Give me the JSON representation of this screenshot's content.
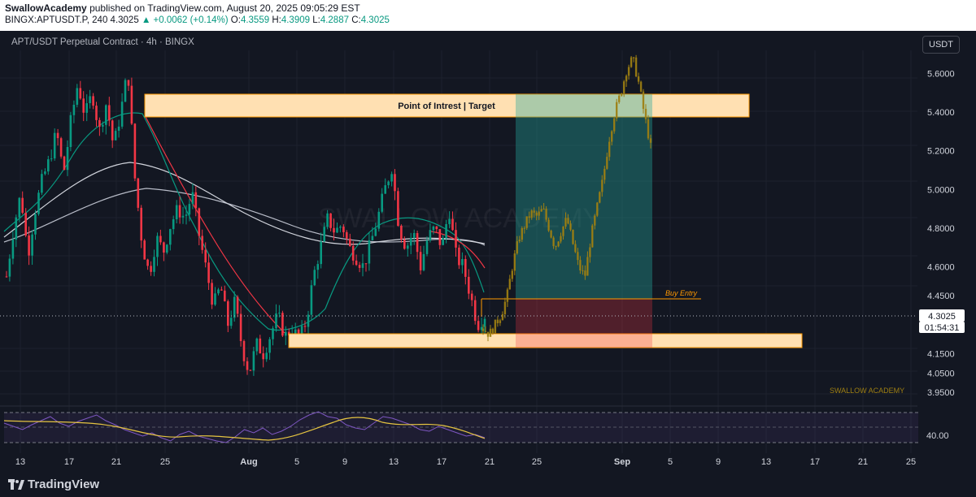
{
  "header": {
    "author": "SwallowAcademy",
    "published_text": "published on TradingView.com, August 20, 2025 09:05:29 EST",
    "symbol_line": "BINGX:APTUSDT.P, 240",
    "last": "4.3025",
    "change": "▲ +0.0062 (+0.14%)",
    "open_label": "O:",
    "open": "4.3559",
    "high_label": "H:",
    "high": "4.3909",
    "low_label": "L:",
    "low": "4.2887",
    "close_label": "C:",
    "close": "4.3025"
  },
  "chart": {
    "title": "APT/USDT Perpetual Contract · 4h · BINGX",
    "currency_button": "USDT",
    "watermark": "SWALLOW ACADEMY",
    "signature": "SWALLOW ACADEMY",
    "last_price_label": "4.3025",
    "countdown_label": "01:54:31",
    "rsi_level_label": "40.00",
    "footer_brand": "TradingView",
    "colors": {
      "background": "#131722",
      "up": "#089981",
      "down": "#f23645",
      "zone_fill": "#ffe0b2",
      "zone_border": "#ff9800",
      "profit": "#26a69a",
      "loss": "#f23645",
      "projection": "#9e7f12",
      "rsi": "#7e57c2",
      "rsi_ma": "#e5c441"
    }
  },
  "chart_data": {
    "type": "candlestick",
    "price_axis": {
      "ticks": [
        3.95,
        4.05,
        4.15,
        4.45,
        4.6,
        4.8,
        5.0,
        5.2,
        5.4,
        5.6
      ],
      "tick_labels": [
        "3.9500",
        "4.0500",
        "4.1500",
        "4.4500",
        "4.6000",
        "4.8000",
        "5.0000",
        "5.2000",
        "5.4000",
        "5.6000"
      ],
      "range": [
        3.9,
        5.72
      ]
    },
    "time_axis": {
      "labels": [
        "13",
        "17",
        "21",
        "25",
        "Aug",
        "5",
        "9",
        "13",
        "17",
        "21",
        "25",
        "Sep",
        "5",
        "9",
        "13",
        "17",
        "21",
        "25"
      ]
    },
    "last_price": 4.3025,
    "annotations": {
      "target_label": "Point of Intrest | Target",
      "entry_label": "Buy Entry",
      "target_zone": [
        5.35,
        5.48
      ],
      "support_zone": [
        4.16,
        4.21
      ],
      "entry_price": 4.39,
      "stop_price": 4.16,
      "target_price": 5.48
    },
    "price_path": [
      4.55,
      4.8,
      4.98,
      4.66,
      4.89,
      5.05,
      5.15,
      5.3,
      5.08,
      5.35,
      5.55,
      5.38,
      5.5,
      5.3,
      5.45,
      5.22,
      5.4,
      5.62,
      5.05,
      4.72,
      4.56,
      4.75,
      4.68,
      4.82,
      4.9,
      4.85,
      4.98,
      4.76,
      4.58,
      4.4,
      4.5,
      4.3,
      4.42,
      4.18,
      4.05,
      4.2,
      4.15,
      4.25,
      4.35,
      4.24,
      4.28,
      4.22,
      4.32,
      4.55,
      4.7,
      4.85,
      4.78,
      4.82,
      4.7,
      4.65,
      4.6,
      4.72,
      4.85,
      5.0,
      5.12,
      4.8,
      4.7,
      4.78,
      4.6,
      4.75,
      4.8,
      4.7,
      4.9,
      4.65,
      4.6,
      4.45,
      4.3,
      4.35
    ],
    "rsi": {
      "level": 40.0,
      "values": [
        52,
        48,
        44,
        50,
        55,
        60,
        52,
        48,
        54,
        58,
        62,
        55,
        50,
        44,
        40,
        36,
        40,
        34,
        30,
        38,
        42,
        36,
        33,
        30,
        28,
        35,
        44,
        40,
        46,
        38,
        42,
        48,
        56,
        62,
        66,
        60,
        58,
        50,
        46,
        44,
        52,
        60,
        58,
        54,
        50,
        44,
        42,
        48,
        44,
        40,
        36,
        38,
        34
      ]
    }
  }
}
